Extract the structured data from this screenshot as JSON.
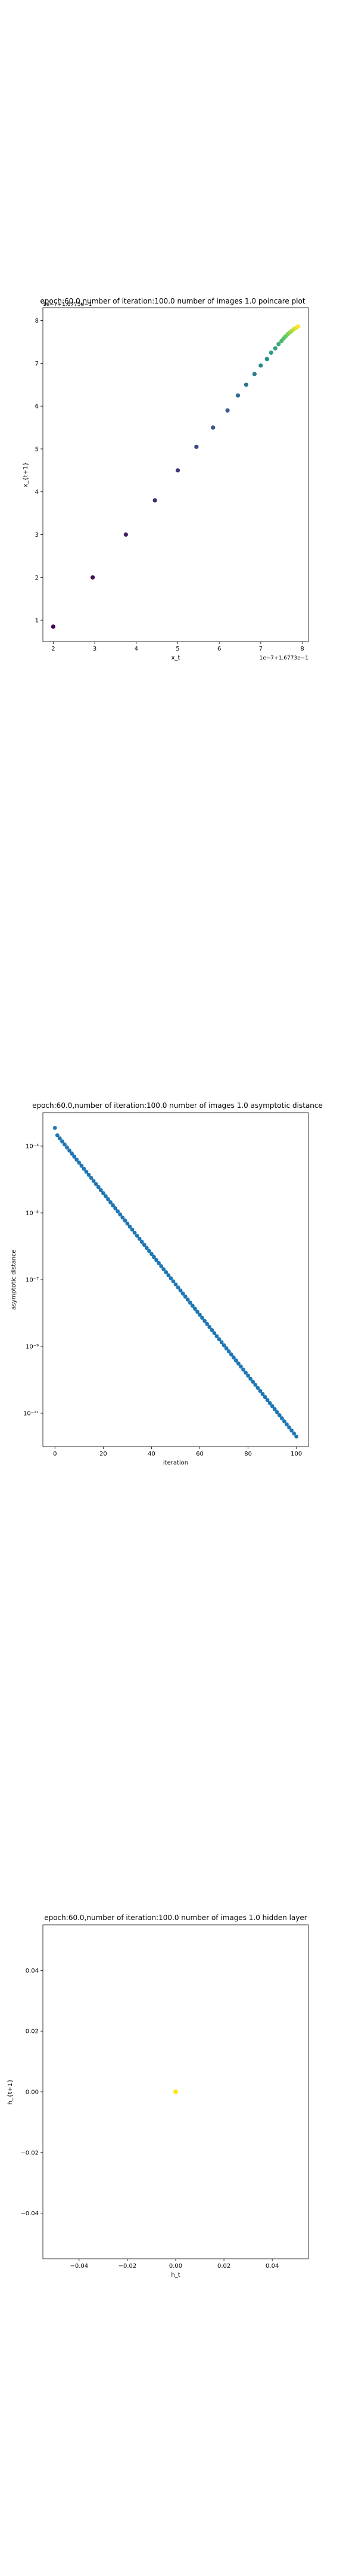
{
  "chart_data": [
    {
      "type": "scatter",
      "title": "epoch:60.0,number of iteration:100.0 number of images 1.0 poincare plot",
      "xlabel": "x_t",
      "ylabel": "x_{t+1}",
      "offset_x_label": "1e−7+1.6773e−1",
      "offset_y_label": "1e−7+1.6773e−1",
      "xlim": [
        1.75,
        8.15
      ],
      "ylim": [
        0.5,
        8.3
      ],
      "xticks": [
        "2",
        "3",
        "4",
        "5",
        "6",
        "7",
        "8"
      ],
      "yticks": [
        "1",
        "2",
        "3",
        "4",
        "5",
        "6",
        "7",
        "8"
      ],
      "colormap": [
        "#440154",
        "#3b528b",
        "#21918c",
        "#5ec962",
        "#fde725"
      ],
      "points": [
        [
          2.0,
          0.85
        ],
        [
          2.95,
          2.0
        ],
        [
          3.75,
          3.0
        ],
        [
          4.45,
          3.8
        ],
        [
          5.0,
          4.5
        ],
        [
          5.45,
          5.05
        ],
        [
          5.85,
          5.5
        ],
        [
          6.2,
          5.9
        ],
        [
          6.45,
          6.25
        ],
        [
          6.65,
          6.5
        ],
        [
          6.85,
          6.75
        ],
        [
          7.0,
          6.95
        ],
        [
          7.15,
          7.1
        ],
        [
          7.25,
          7.25
        ],
        [
          7.35,
          7.35
        ],
        [
          7.43,
          7.45
        ],
        [
          7.5,
          7.52
        ],
        [
          7.55,
          7.58
        ],
        [
          7.6,
          7.63
        ],
        [
          7.65,
          7.68
        ],
        [
          7.7,
          7.72
        ],
        [
          7.75,
          7.76
        ],
        [
          7.8,
          7.8
        ],
        [
          7.85,
          7.83
        ],
        [
          7.9,
          7.86
        ]
      ]
    },
    {
      "type": "scatter",
      "title": "epoch:60.0,number of iteration:100.0  number of images 1.0 asymptotic distance",
      "xlabel": "iteration",
      "ylabel": "asymptotic distance",
      "yscale": "log",
      "xlim": [
        -5,
        105
      ],
      "ylim": [
        1e-12,
        0.01
      ],
      "xticks": [
        "0",
        "20",
        "40",
        "60",
        "80",
        "100"
      ],
      "ytick_labels": [
        "10⁻³",
        "10⁻⁵",
        "10⁻⁷",
        "10⁻⁹",
        "10⁻¹¹"
      ],
      "ytick_values": [
        0.001,
        1e-05,
        1e-07,
        1e-09,
        1e-11
      ],
      "color": "#1f77b4",
      "first_point": [
        0,
        0.0035
      ],
      "start_value": 0.0021,
      "end_value": 2e-12,
      "n_points": 101
    },
    {
      "type": "scatter",
      "title": "epoch:60.0,number of iteration:100.0  number of images 1.0 hidden layer",
      "xlabel": "h_t",
      "ylabel": "h_{t+1}",
      "xlim": [
        -0.055,
        0.055
      ],
      "ylim": [
        -0.055,
        0.055
      ],
      "xticks": [
        "−0.04",
        "−0.02",
        "0.00",
        "0.02",
        "0.04"
      ],
      "xtick_values": [
        -0.04,
        -0.02,
        0.0,
        0.02,
        0.04
      ],
      "yticks": [
        "0.04",
        "0.02",
        "0.00",
        "−0.02",
        "−0.04"
      ],
      "ytick_values": [
        0.04,
        0.02,
        0.0,
        -0.02,
        -0.04
      ],
      "point": [
        0.0,
        0.0
      ],
      "point_color": "#fde725"
    }
  ]
}
